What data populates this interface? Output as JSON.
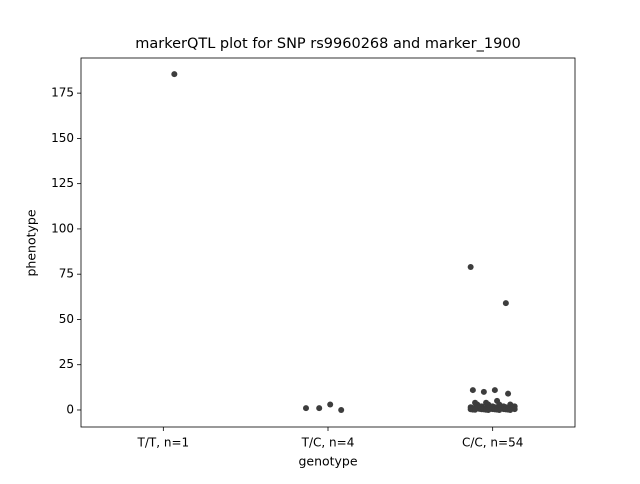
{
  "chart_data": {
    "type": "strip",
    "title": "markerQTL plot for SNP rs9960268 and marker_1900",
    "x_label": "genotype",
    "y_label": "phenotype",
    "categories": [
      "T/T, n=1",
      "T/C, n=4",
      "C/C, n=54"
    ],
    "values": [
      [
        185.5
      ],
      [
        1,
        0,
        3,
        1
      ],
      [
        79,
        59,
        11,
        10,
        11,
        9,
        5,
        4,
        4,
        3,
        3,
        3,
        3,
        2,
        2,
        2,
        2,
        2,
        2,
        2,
        2,
        1.5,
        1.5,
        1.5,
        1,
        1,
        1,
        1,
        1,
        1,
        1,
        1,
        1,
        1,
        0.8,
        0.8,
        0.6,
        0.6,
        0.5,
        0.5,
        0.5,
        0.4,
        0.4,
        0.3,
        0.3,
        0.3,
        0.2,
        0.2,
        0.2,
        0.1,
        0.1,
        0,
        0,
        0
      ]
    ],
    "color": "#3d3d3d",
    "ylim": [
      -9.4,
      194.4
    ],
    "yticks": [
      0,
      25,
      50,
      75,
      100,
      125,
      150,
      175
    ]
  }
}
